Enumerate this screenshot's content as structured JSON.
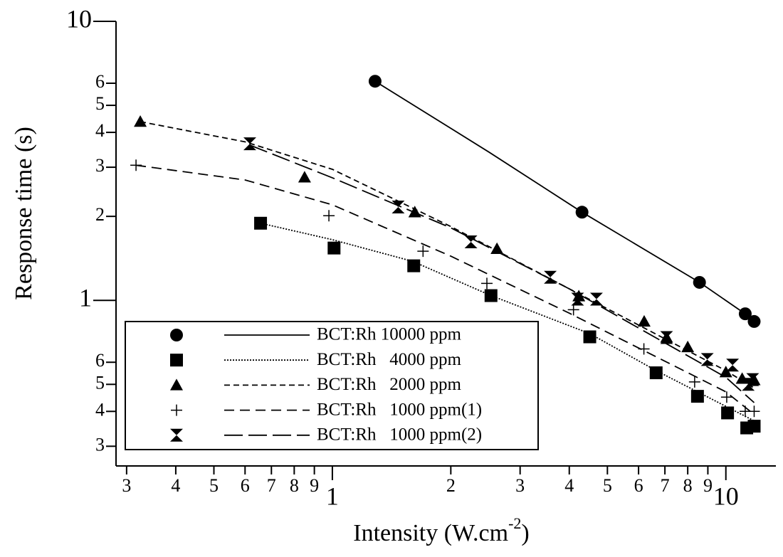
{
  "chart_data": {
    "type": "scatter",
    "xlabel": {
      "text": "Intensity (W.cm",
      "sup": "-2",
      "tail": ")"
    },
    "ylabel": "Response time (s)",
    "log_x": true,
    "log_y": true,
    "xlim": [
      0.282,
      13.4
    ],
    "ylim": [
      0.255,
      10
    ],
    "xticks": [
      {
        "value": 0.3,
        "label": "3"
      },
      {
        "value": 0.4,
        "label": "4"
      },
      {
        "value": 0.5,
        "label": "5"
      },
      {
        "value": 0.6,
        "label": "6"
      },
      {
        "value": 0.7,
        "label": "7"
      },
      {
        "value": 0.8,
        "label": "8"
      },
      {
        "value": 0.9,
        "label": "9"
      },
      1,
      2,
      3,
      4,
      5,
      6,
      7,
      8,
      9,
      10
    ],
    "yticks": [
      {
        "value": 0.3,
        "label": "3"
      },
      {
        "value": 0.4,
        "label": "4"
      },
      {
        "value": 0.5,
        "label": "5"
      },
      {
        "value": 0.6,
        "label": "6"
      },
      1,
      2,
      3,
      4,
      5,
      6,
      10
    ],
    "legend": "lower-left",
    "series": [
      {
        "name": "BCT:Rh 10000 ppm",
        "color": "#000000",
        "marker": "circle",
        "dash": "solid",
        "x": [
          1.284,
          4.31,
          8.57,
          11.2,
          11.8
        ],
        "values": [
          6.1,
          2.07,
          1.16,
          0.895,
          0.84
        ],
        "fit_x": [
          1.284,
          2.5,
          4.31,
          8.57,
          11.8
        ],
        "fit_values": [
          6.1,
          3.4,
          2.07,
          1.16,
          0.85
        ]
      },
      {
        "name": "BCT:Rh   4000 ppm",
        "color": "#000000",
        "marker": "square",
        "dash": "dotted",
        "x": [
          0.657,
          1.01,
          1.61,
          2.53,
          4.51,
          6.65,
          8.47,
          10.1,
          11.3,
          11.8
        ],
        "values": [
          1.89,
          1.54,
          1.33,
          1.04,
          0.74,
          0.55,
          0.453,
          0.395,
          0.349,
          0.354
        ],
        "fit_x": [
          0.657,
          1.0,
          1.6,
          2.53,
          4.51,
          6.65,
          11.8
        ],
        "fit_values": [
          1.89,
          1.65,
          1.38,
          1.04,
          0.76,
          0.56,
          0.37
        ]
      },
      {
        "name": "BCT:Rh   2000 ppm",
        "color": "#000000",
        "marker": "triangle",
        "dash": "short-dash",
        "x": [
          0.325,
          0.85,
          1.62,
          2.62,
          4.23,
          6.2,
          7.07,
          8.0,
          10.0,
          11.0,
          11.8
        ],
        "values": [
          4.37,
          2.76,
          2.07,
          1.53,
          1.035,
          0.84,
          0.736,
          0.68,
          0.553,
          0.524,
          0.518
        ],
        "fit_x": [
          0.325,
          0.6,
          1.0,
          2.0,
          4.0,
          10.0,
          11.8
        ],
        "fit_values": [
          4.37,
          3.7,
          2.95,
          1.84,
          1.1,
          0.56,
          0.485
        ]
      },
      {
        "name": "BCT:Rh   1000 ppm(1)",
        "color": "#000000",
        "marker": "plus",
        "dash": "medium-dash",
        "x": [
          0.317,
          0.98,
          1.7,
          2.47,
          4.1,
          6.19,
          8.33,
          10.05,
          11.2,
          11.8
        ],
        "values": [
          3.05,
          2.01,
          1.5,
          1.15,
          0.926,
          0.67,
          0.51,
          0.45,
          0.4,
          0.4
        ],
        "fit_x": [
          0.317,
          0.6,
          1.0,
          2.0,
          4.0,
          10.0,
          11.8
        ],
        "fit_values": [
          3.05,
          2.7,
          2.2,
          1.44,
          0.9,
          0.47,
          0.39
        ]
      },
      {
        "name": "BCT:Rh   1000 ppm(2)",
        "color": "#000000",
        "marker": "hourglass",
        "dash": "long-dash",
        "x": [
          0.617,
          1.47,
          2.25,
          3.58,
          4.2,
          4.69,
          7.07,
          8.97,
          10.4,
          11.4,
          11.7
        ],
        "values": [
          3.64,
          2.16,
          1.62,
          1.21,
          1.01,
          1.01,
          0.736,
          0.614,
          0.586,
          0.5,
          0.52
        ],
        "fit_x": [
          0.617,
          1.0,
          2.0,
          4.0,
          10.0,
          11.8
        ],
        "fit_values": [
          3.6,
          2.75,
          1.82,
          1.1,
          0.53,
          0.43
        ]
      }
    ]
  }
}
